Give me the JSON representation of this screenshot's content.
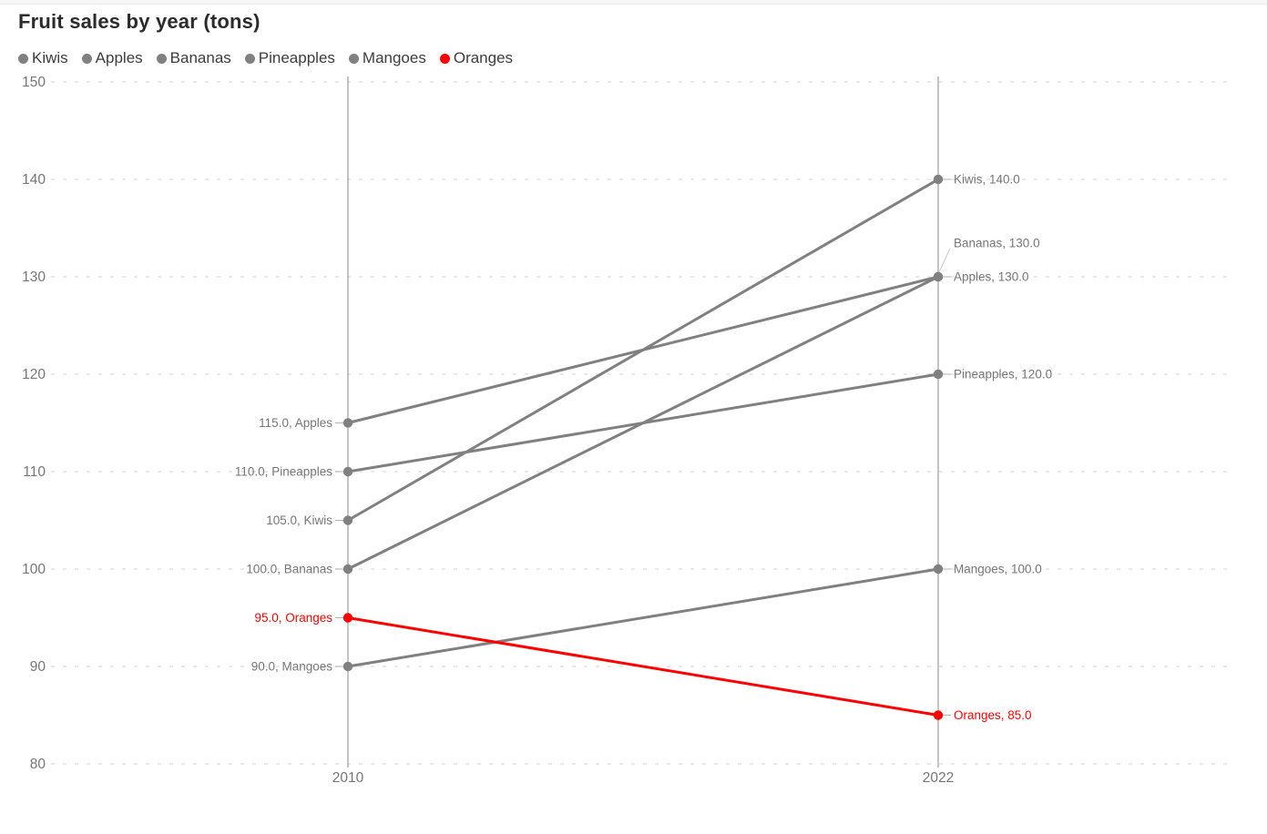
{
  "title": "Fruit sales by year (tons)",
  "legend": {
    "items": [
      {
        "label": "Kiwis",
        "color": "#808080"
      },
      {
        "label": "Apples",
        "color": "#808080"
      },
      {
        "label": "Bananas",
        "color": "#808080"
      },
      {
        "label": "Pineapples",
        "color": "#808080"
      },
      {
        "label": "Mangoes",
        "color": "#808080"
      },
      {
        "label": "Oranges",
        "color": "#ff0000"
      }
    ]
  },
  "chart_data": {
    "type": "line",
    "variant": "slope-chart",
    "title": "Fruit sales by year (tons)",
    "categories": [
      "2010",
      "2022"
    ],
    "xlabel": "",
    "ylabel": "",
    "ylim": [
      80,
      150
    ],
    "yticks": [
      150,
      140,
      130,
      120,
      110,
      100,
      90,
      80
    ],
    "grid": "horizontal-dashed",
    "legend_position": "top-left",
    "series": [
      {
        "name": "Kiwis",
        "color": "#808080",
        "values": [
          105.0,
          140.0
        ],
        "left_label": "105.0, Kiwis",
        "right_label": "Kiwis, 140.0"
      },
      {
        "name": "Apples",
        "color": "#808080",
        "values": [
          115.0,
          130.0
        ],
        "left_label": "115.0, Apples",
        "right_label": "Apples, 130.0"
      },
      {
        "name": "Bananas",
        "color": "#808080",
        "values": [
          100.0,
          130.0
        ],
        "left_label": "100.0, Bananas",
        "right_label": "Bananas, 130.0",
        "right_label_offset_y": -37,
        "leader_line": true
      },
      {
        "name": "Pineapples",
        "color": "#808080",
        "values": [
          110.0,
          120.0
        ],
        "left_label": "110.0, Pineapples",
        "right_label": "Pineapples, 120.0"
      },
      {
        "name": "Mangoes",
        "color": "#808080",
        "values": [
          90.0,
          100.0
        ],
        "left_label": "90.0, Mangoes",
        "right_label": "Mangoes, 100.0"
      },
      {
        "name": "Oranges",
        "color": "#ff0000",
        "values": [
          95.0,
          85.0
        ],
        "left_label": "95.0, Oranges",
        "right_label": "Oranges, 85.0"
      }
    ],
    "colors": {
      "series_gray": "#808080",
      "highlight_red": "#ff0000",
      "grid_line": "#e2e2e2",
      "axis_line": "#8a8a8a",
      "tick_label": "#767676",
      "data_label": "#777676",
      "connector": "#b2b2b2",
      "leader": "#c9c9c9",
      "title_text": "#2b2b2b",
      "legend_text": "#3d3d3d"
    }
  }
}
